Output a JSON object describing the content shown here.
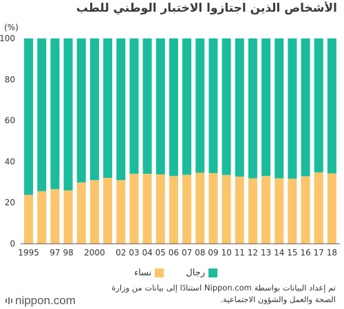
{
  "title": "الأشخاص الذين اجتازوا الاختبار الوطني للطب",
  "unit_label": "(%)",
  "legend": {
    "men": "رجال",
    "women": "نساء"
  },
  "source": "تم إعداد البيانات بواسطة Nippon.com استنادًا إلى بيانات من وزارة الصحة والعمل والشؤون الاجتماعية.",
  "logo_text": "nippon.com",
  "colors": {
    "men": "#1abc9c",
    "women": "#fcc56b",
    "axis": "#555555",
    "grid": "#dddddd"
  },
  "chart_data": {
    "type": "bar",
    "stacked": true,
    "categories": [
      "1995",
      "",
      "97",
      "98",
      "",
      "2000",
      "",
      "02",
      "03",
      "04",
      "05",
      "06",
      "07",
      "08",
      "09",
      "10",
      "11",
      "12",
      "13",
      "14",
      "15",
      "16",
      "17",
      "18"
    ],
    "ylim": [
      0,
      100
    ],
    "yticks": [
      0,
      20,
      40,
      60,
      80,
      100
    ],
    "series": [
      {
        "name": "نساء",
        "color": "#fcc56b",
        "values": [
          23.8,
          25.6,
          26.6,
          26.0,
          29.9,
          31.0,
          32.1,
          31.0,
          34.1,
          34.1,
          33.8,
          33.0,
          33.6,
          34.6,
          34.4,
          33.5,
          32.7,
          31.9,
          33.0,
          31.9,
          31.7,
          32.9,
          34.8,
          34.3
        ]
      },
      {
        "name": "رجال",
        "color": "#1abc9c",
        "values": [
          76.2,
          74.4,
          73.4,
          74.0,
          70.1,
          69.0,
          67.9,
          69.0,
          65.9,
          65.9,
          66.2,
          67.0,
          66.4,
          65.4,
          65.6,
          66.5,
          67.3,
          68.1,
          67.0,
          68.1,
          68.3,
          67.1,
          65.2,
          65.7
        ]
      }
    ]
  }
}
